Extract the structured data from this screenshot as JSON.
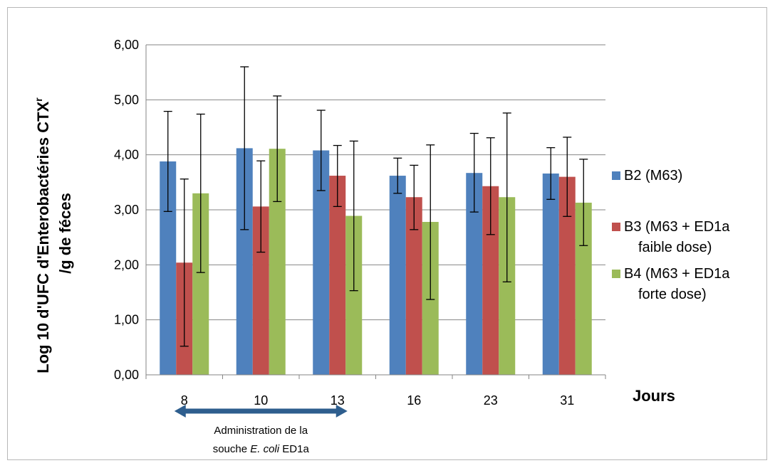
{
  "chart_data": {
    "type": "bar",
    "ylabel_line1": "Log 10 d'UFC d'Enterobactéries CTX",
    "ylabel_sup": "r",
    "ylabel_line2": "/g de féces",
    "xlabel": "Jours",
    "categories": [
      "8",
      "10",
      "13",
      "16",
      "23",
      "31"
    ],
    "ylim": [
      0,
      6
    ],
    "yticks": [
      "0,00",
      "1,00",
      "2,00",
      "3,00",
      "4,00",
      "5,00",
      "6,00"
    ],
    "grid": true,
    "legend_position": "right",
    "series": [
      {
        "name_line1": "B2 (M63)",
        "name_line2": "",
        "color": "#4f81bd",
        "values": [
          3.88,
          4.12,
          4.08,
          3.62,
          3.67,
          3.66
        ],
        "err_low": [
          2.97,
          2.64,
          3.35,
          3.3,
          2.96,
          3.19
        ],
        "err_high": [
          4.79,
          5.6,
          4.81,
          3.94,
          4.39,
          4.13
        ]
      },
      {
        "name_line1": "B3 (M63 + ED1a",
        "name_line2": "faible dose)",
        "color": "#c0504d",
        "values": [
          2.04,
          3.06,
          3.62,
          3.23,
          3.43,
          3.6
        ],
        "err_low": [
          0.52,
          2.23,
          3.06,
          2.64,
          2.55,
          2.88
        ],
        "err_high": [
          3.56,
          3.89,
          4.17,
          3.81,
          4.31,
          4.32
        ]
      },
      {
        "name_line1": "B4 (M63 + ED1a",
        "name_line2": "forte dose)",
        "color": "#9bbb59",
        "values": [
          3.3,
          4.11,
          2.89,
          2.78,
          3.23,
          3.13
        ],
        "err_low": [
          1.86,
          3.15,
          1.53,
          1.37,
          1.69,
          2.35
        ],
        "err_high": [
          4.74,
          5.07,
          4.25,
          4.18,
          4.76,
          3.92
        ]
      }
    ],
    "annotation": {
      "line1": "Administration de la",
      "line2_prefix": "souche ",
      "line2_italic": "E. coli",
      "line2_suffix": " ED1a",
      "arrow_from_category": "8",
      "arrow_to_category": "13",
      "arrow_color": "#2e5e8e"
    }
  }
}
